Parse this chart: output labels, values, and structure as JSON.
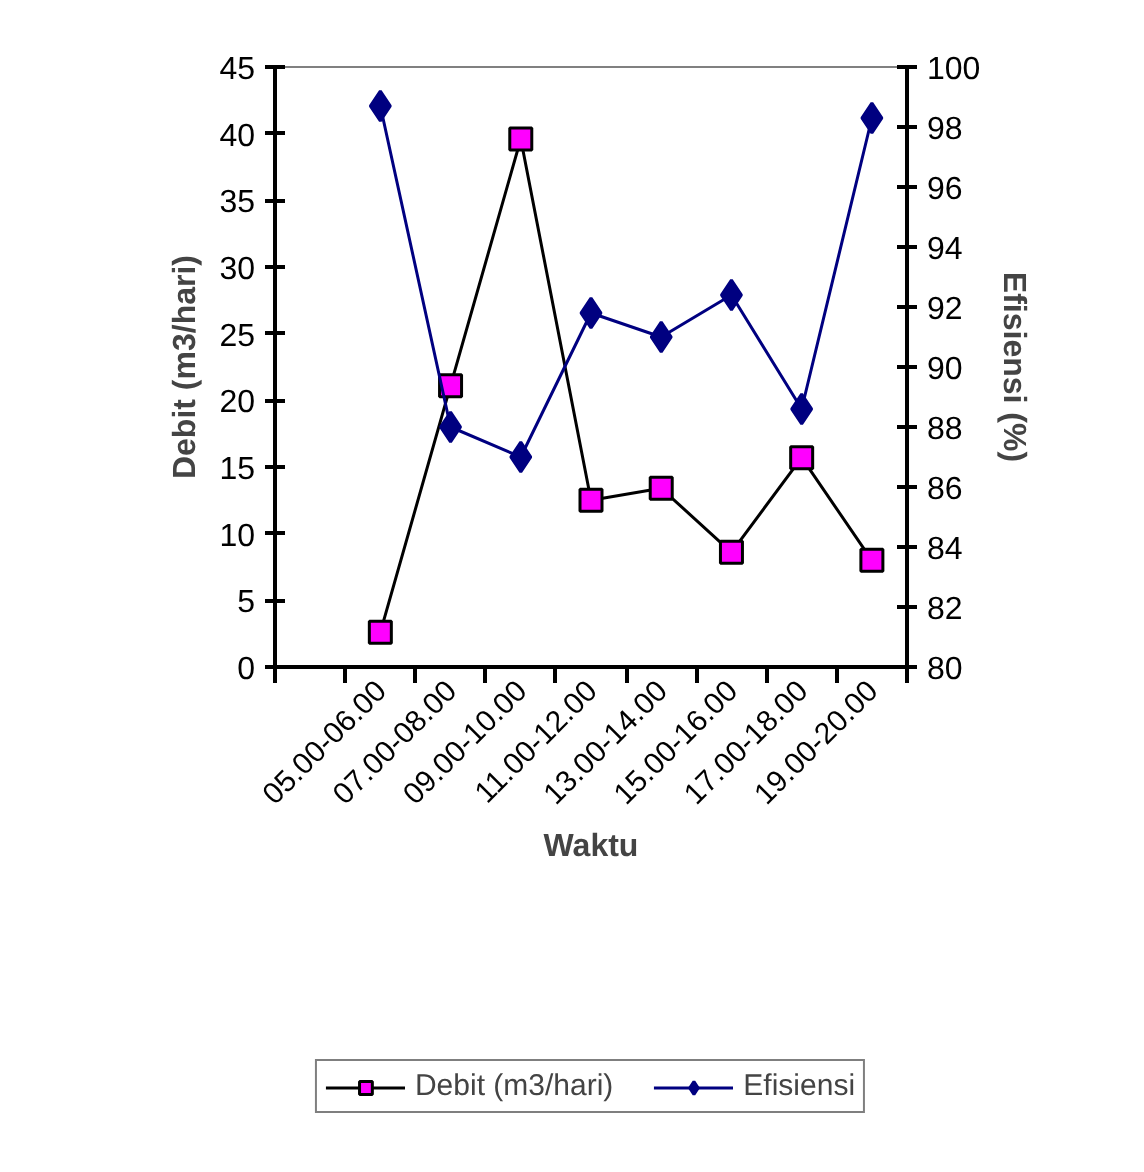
{
  "chart_data": {
    "type": "line",
    "xlabel": "Waktu",
    "ylabel": "Debit (m3/hari)",
    "y2label": "Efisiensi (%)",
    "categories": [
      null,
      "05.00-06.00",
      "07.00-08.00",
      "09.00-10.00",
      "11.00-12.00",
      "13.00-14.00",
      "15.00-16.00",
      "17.00-18.00",
      "19.00-20.00"
    ],
    "ylim": [
      0,
      45
    ],
    "yticks": [
      0,
      5,
      10,
      15,
      20,
      25,
      30,
      35,
      40,
      45
    ],
    "y2lim": [
      80,
      100
    ],
    "y2ticks": [
      80,
      82,
      84,
      86,
      88,
      90,
      92,
      94,
      96,
      98,
      100
    ],
    "grid": false,
    "legend": "bottom",
    "series": [
      {
        "name": "Debit (m3/hari)",
        "color": "#ff00ff",
        "marker": "square",
        "values": [
          null,
          2.6,
          21.1,
          39.6,
          12.5,
          13.4,
          8.6,
          15.7,
          8.0
        ]
      },
      {
        "name": "Efisiensi",
        "color": "#000080",
        "marker": "diamond",
        "axis": "y2",
        "values": [
          null,
          98.7,
          88.0,
          87.0,
          91.8,
          91.0,
          92.4,
          88.6,
          98.3
        ]
      }
    ]
  }
}
